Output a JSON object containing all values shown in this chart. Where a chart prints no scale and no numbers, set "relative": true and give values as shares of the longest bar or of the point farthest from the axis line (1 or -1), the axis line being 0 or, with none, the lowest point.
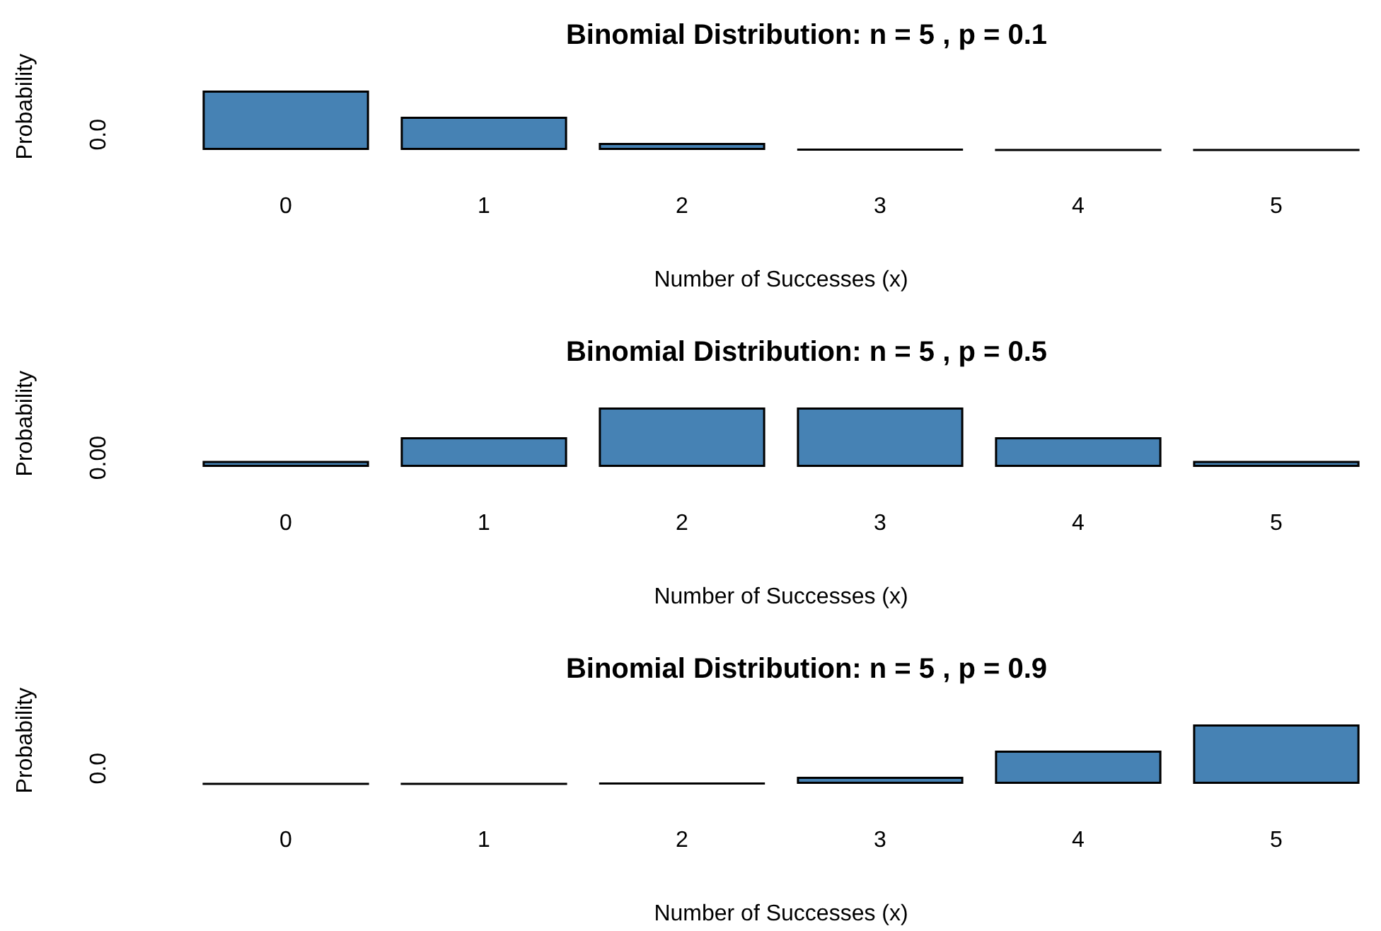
{
  "chart_data": [
    {
      "type": "bar",
      "title": "Binomial Distribution: n = 5 , p = 0.1",
      "xlabel": "Number of Successes (x)",
      "ylabel": "Probability",
      "categories": [
        "0",
        "1",
        "2",
        "3",
        "4",
        "5"
      ],
      "values": [
        1,
        0.56,
        0.12,
        0.01,
        0,
        0
      ],
      "color": "#4682b4",
      "relative": true,
      "annotations": [
        "0.0"
      ]
    },
    {
      "type": "bar",
      "title": "Binomial Distribution: n = 5 , p = 0.5",
      "xlabel": "Number of Successes (x)",
      "ylabel": "Probability",
      "categories": [
        "0",
        "1",
        "2",
        "3",
        "4",
        "5"
      ],
      "values": [
        0.1,
        0.5,
        1,
        1,
        0.5,
        0.1
      ],
      "color": "#4682b4",
      "relative": true,
      "annotations": [
        "0.00"
      ]
    },
    {
      "type": "bar",
      "title": "Binomial Distribution: n = 5 , p = 0.9",
      "xlabel": "Number of Successes (x)",
      "ylabel": "Probability",
      "categories": [
        "0",
        "1",
        "2",
        "3",
        "4",
        "5"
      ],
      "values": [
        0,
        0,
        0.01,
        0.12,
        0.56,
        1
      ],
      "color": "#4682b4",
      "relative": true,
      "annotations": [
        "0.0"
      ]
    }
  ]
}
